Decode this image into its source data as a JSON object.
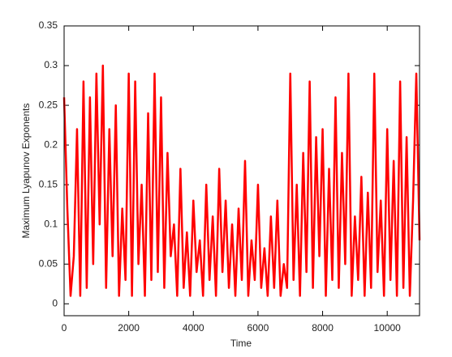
{
  "chart_data": {
    "type": "line",
    "xlabel": "Time",
    "ylabel": "Maximum Lyapunov Exponents",
    "color": "#ff0000",
    "x": [
      0,
      100,
      200,
      300,
      400,
      500,
      600,
      700,
      800,
      900,
      1000,
      1100,
      1200,
      1300,
      1400,
      1500,
      1600,
      1700,
      1800,
      1900,
      2000,
      2100,
      2200,
      2300,
      2400,
      2500,
      2600,
      2700,
      2800,
      2900,
      3000,
      3100,
      3200,
      3300,
      3400,
      3500,
      3600,
      3700,
      3800,
      3900,
      4000,
      4100,
      4200,
      4300,
      4400,
      4500,
      4600,
      4700,
      4800,
      4900,
      5000,
      5100,
      5200,
      5300,
      5400,
      5500,
      5600,
      5700,
      5800,
      5900,
      6000,
      6100,
      6200,
      6300,
      6400,
      6500,
      6600,
      6700,
      6800,
      6900,
      7000,
      7100,
      7200,
      7300,
      7400,
      7500,
      7600,
      7700,
      7800,
      7900,
      8000,
      8100,
      8200,
      8300,
      8400,
      8500,
      8600,
      8700,
      8800,
      8900,
      9000,
      9100,
      9200,
      9300,
      9400,
      9500,
      9600,
      9700,
      9800,
      9900,
      10000,
      10100,
      10200,
      10300,
      10400,
      10500,
      10600,
      10700,
      10800,
      10900,
      11000
    ],
    "values": [
      0.26,
      0.12,
      0.01,
      0.06,
      0.22,
      0.01,
      0.28,
      0.02,
      0.26,
      0.05,
      0.29,
      0.1,
      0.3,
      0.02,
      0.22,
      0.06,
      0.25,
      0.01,
      0.12,
      0.03,
      0.29,
      0.01,
      0.28,
      0.05,
      0.15,
      0.01,
      0.24,
      0.03,
      0.29,
      0.04,
      0.26,
      0.02,
      0.19,
      0.06,
      0.1,
      0.01,
      0.17,
      0.02,
      0.09,
      0.01,
      0.13,
      0.04,
      0.08,
      0.01,
      0.15,
      0.03,
      0.11,
      0.01,
      0.17,
      0.04,
      0.13,
      0.02,
      0.1,
      0.01,
      0.12,
      0.03,
      0.18,
      0.01,
      0.08,
      0.03,
      0.15,
      0.02,
      0.07,
      0.01,
      0.11,
      0.02,
      0.13,
      0.01,
      0.05,
      0.02,
      0.29,
      0.03,
      0.15,
      0.01,
      0.19,
      0.04,
      0.28,
      0.02,
      0.21,
      0.06,
      0.22,
      0.01,
      0.17,
      0.03,
      0.26,
      0.02,
      0.19,
      0.05,
      0.29,
      0.01,
      0.11,
      0.03,
      0.16,
      0.01,
      0.14,
      0.02,
      0.29,
      0.04,
      0.13,
      0.01,
      0.22,
      0.03,
      0.18,
      0.01,
      0.28,
      0.02,
      0.21,
      0.01,
      0.13,
      0.29,
      0.08
    ],
    "xlim": [
      0,
      11000
    ],
    "ylim": [
      -0.015,
      0.35
    ],
    "xticks": [
      0,
      2000,
      4000,
      6000,
      8000,
      10000
    ],
    "yticks": [
      0,
      0.05,
      0.1,
      0.15,
      0.2,
      0.25,
      0.3,
      0.35
    ]
  }
}
